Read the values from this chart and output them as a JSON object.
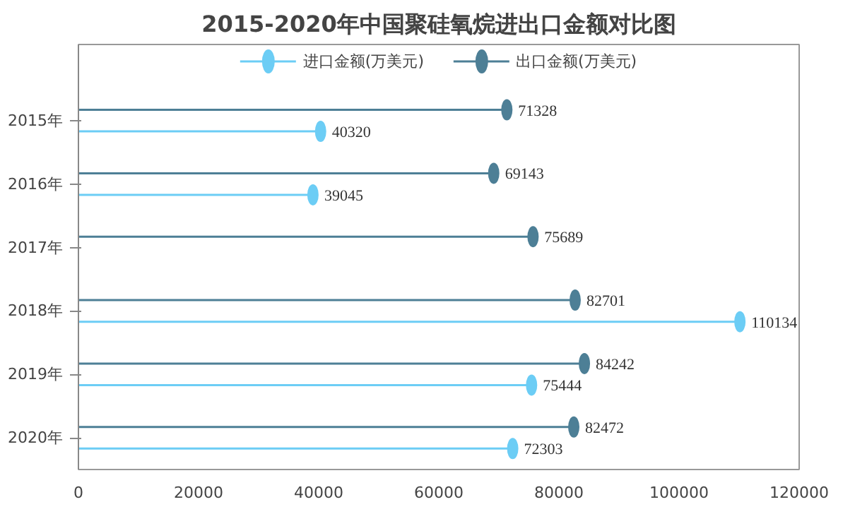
{
  "chart_data": {
    "type": "lollipop",
    "title": "2015-2020年中国聚硅氧烷进出口金额对比图",
    "orientation": "horizontal",
    "categories": [
      "2015年",
      "2016年",
      "2017年",
      "2018年",
      "2019年",
      "2020年"
    ],
    "series": [
      {
        "name": "进口金额(万美元)",
        "color": "#6ccdf5",
        "values": [
          40320,
          39045,
          null,
          110134,
          75444,
          72303
        ]
      },
      {
        "name": "出口金额(万美元)",
        "color": "#4d7f96",
        "values": [
          71328,
          69143,
          75689,
          82701,
          84242,
          82472
        ]
      }
    ],
    "xlim": [
      0,
      120000
    ],
    "xticks": [
      0,
      20000,
      40000,
      60000,
      80000,
      100000,
      120000
    ],
    "data_labels": true,
    "legend": "top",
    "marker": "circle",
    "grid": false
  }
}
